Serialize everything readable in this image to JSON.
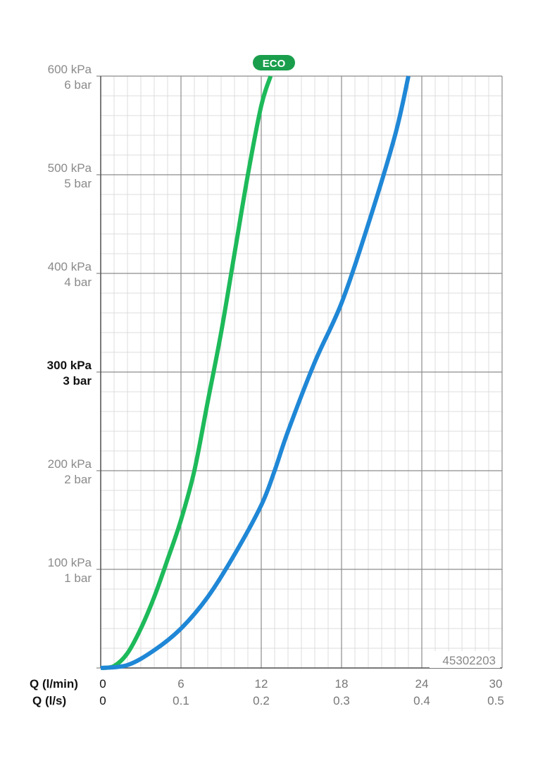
{
  "chart_data": {
    "type": "line",
    "x_axis": {
      "title_primary": "Q (l/min)",
      "title_secondary": "Q (l/s)",
      "range": [
        0,
        30
      ],
      "ticks_primary": [
        "0",
        "6",
        "12",
        "18",
        "24",
        "30"
      ],
      "ticks_secondary": [
        "0",
        "0.1",
        "0.2",
        "0.3",
        "0.4",
        "0.5"
      ]
    },
    "y_axis": {
      "unit": "kPa",
      "range": [
        0,
        600
      ],
      "ticks": [
        {
          "value": 100,
          "kpa": "100 kPa",
          "bar": "1 bar"
        },
        {
          "value": 200,
          "kpa": "200 kPa",
          "bar": "2 bar"
        },
        {
          "value": 300,
          "kpa": "300 kPa",
          "bar": "3 bar",
          "emphasis": true
        },
        {
          "value": 400,
          "kpa": "400 kPa",
          "bar": "4 bar"
        },
        {
          "value": 500,
          "kpa": "500 kPa",
          "bar": "5 bar"
        },
        {
          "value": 600,
          "kpa": "600 kPa",
          "bar": "6 bar"
        }
      ]
    },
    "grid": true,
    "product_code": "45302203",
    "series": [
      {
        "name": "ECO",
        "color": "#1dba5a",
        "points": [
          [
            0,
            0
          ],
          [
            1,
            2
          ],
          [
            2,
            15
          ],
          [
            3,
            40
          ],
          [
            4,
            72
          ],
          [
            5,
            110
          ],
          [
            6,
            150
          ],
          [
            7,
            200
          ],
          [
            8,
            270
          ],
          [
            9,
            340
          ],
          [
            10,
            420
          ],
          [
            11,
            500
          ],
          [
            12,
            570
          ],
          [
            12.7,
            600
          ]
        ]
      },
      {
        "color": "#1f87d6",
        "points": [
          [
            0,
            0
          ],
          [
            2,
            3
          ],
          [
            4,
            18
          ],
          [
            6,
            40
          ],
          [
            8,
            72
          ],
          [
            10,
            115
          ],
          [
            12,
            165
          ],
          [
            13,
            200
          ],
          [
            14,
            240
          ],
          [
            16,
            310
          ],
          [
            18,
            370
          ],
          [
            20,
            450
          ],
          [
            22,
            540
          ],
          [
            23,
            600
          ]
        ]
      }
    ]
  }
}
